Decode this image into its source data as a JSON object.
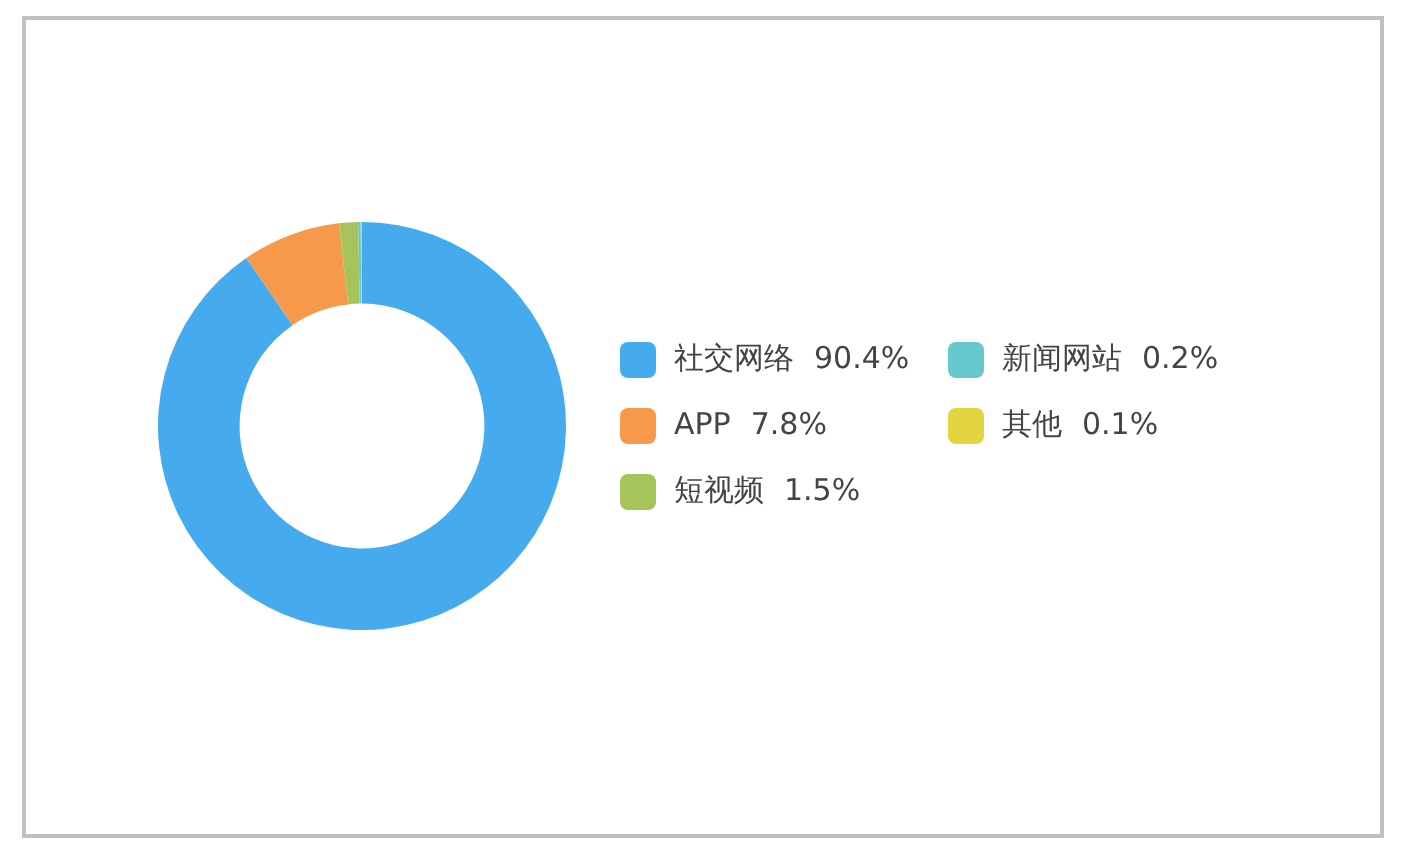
{
  "chart_data": {
    "type": "donut",
    "categories": [
      "社交网络",
      "APP",
      "短视频",
      "新闻网站",
      "其他"
    ],
    "values": [
      90.4,
      7.8,
      1.5,
      0.2,
      0.1
    ],
    "colors": [
      "#45abee",
      "#f7994b",
      "#a5c55a",
      "#64c8cc",
      "#e4d440"
    ],
    "value_labels": [
      "90.4%",
      "7.8%",
      "1.5%",
      "0.2%",
      "0.1%"
    ],
    "legend": "right"
  }
}
